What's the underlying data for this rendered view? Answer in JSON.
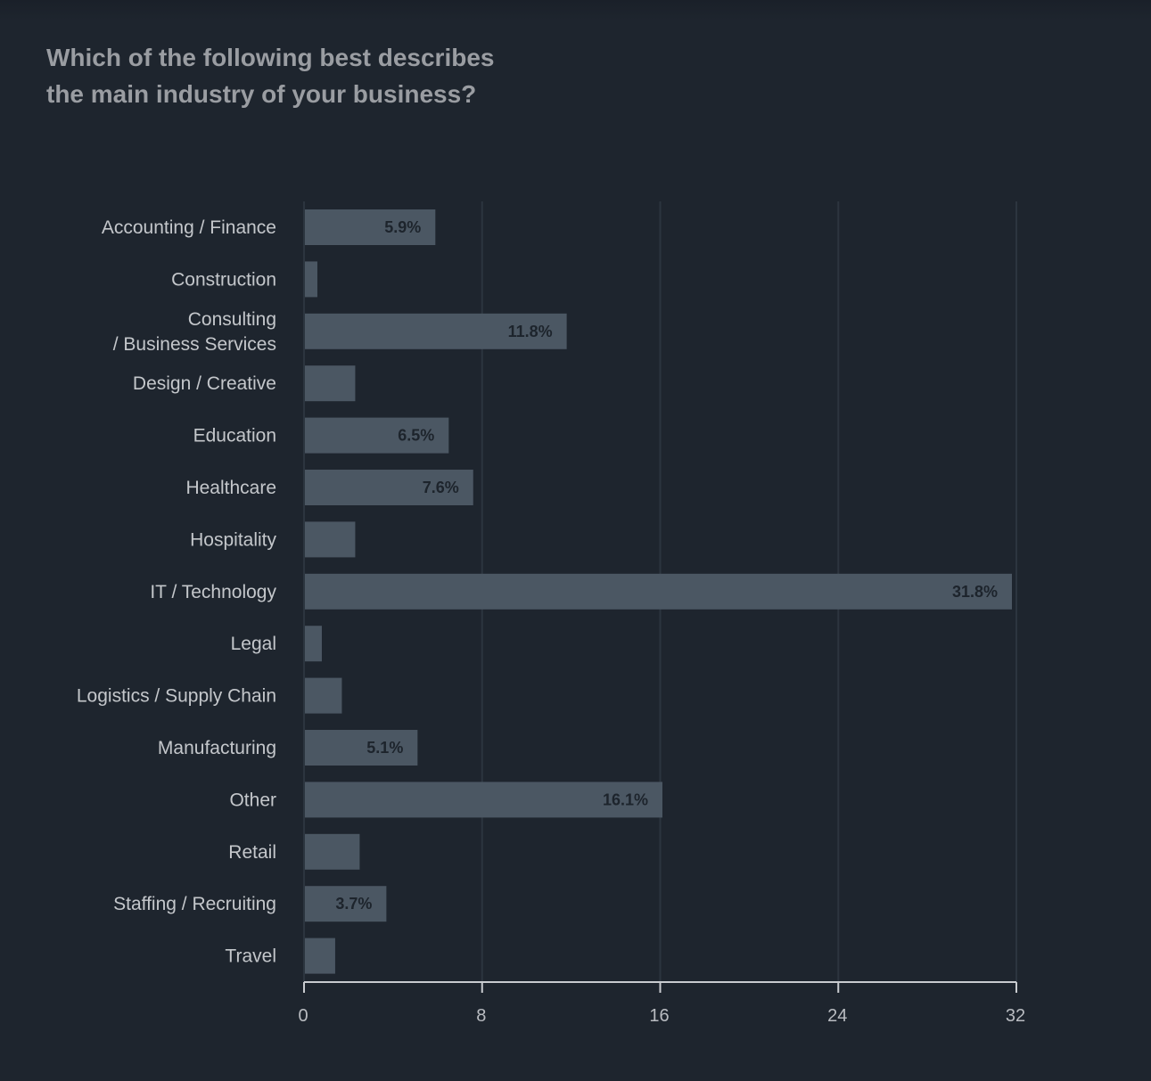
{
  "title_lines": [
    "Which of the following best describes",
    "the main industry of your business?"
  ],
  "colors": {
    "background": "#1e252e",
    "bar": "#4b5763",
    "grid": "#2c353f",
    "axis": "#c9ccd0",
    "data_label": "#1d242c"
  },
  "chart_data": {
    "type": "bar",
    "orientation": "horizontal",
    "title": "Which of the following best describes the main industry of your business?",
    "categories": [
      [
        "Accounting / Finance"
      ],
      [
        "Construction"
      ],
      [
        "Consulting",
        "/ Business Services"
      ],
      [
        "Design / Creative"
      ],
      [
        "Education"
      ],
      [
        "Healthcare"
      ],
      [
        "Hospitality"
      ],
      [
        "IT / Technology"
      ],
      [
        "Legal"
      ],
      [
        "Logistics / Supply Chain"
      ],
      [
        "Manufacturing"
      ],
      [
        "Other"
      ],
      [
        "Retail"
      ],
      [
        "Staffing / Recruiting"
      ],
      [
        "Travel"
      ]
    ],
    "values": [
      5.9,
      0.6,
      11.8,
      2.3,
      6.5,
      7.6,
      2.3,
      31.8,
      0.8,
      1.7,
      5.1,
      16.1,
      2.5,
      3.7,
      1.4
    ],
    "data_labels": [
      "5.9%",
      "",
      "11.8%",
      "",
      "6.5%",
      "7.6%",
      "",
      "31.8%",
      "",
      "",
      "5.1%",
      "16.1%",
      "",
      "3.7%",
      ""
    ],
    "xlim": [
      0,
      32
    ],
    "xticks": [
      0,
      8,
      16,
      24,
      32
    ],
    "grid": true,
    "xlabel": "",
    "ylabel": ""
  }
}
